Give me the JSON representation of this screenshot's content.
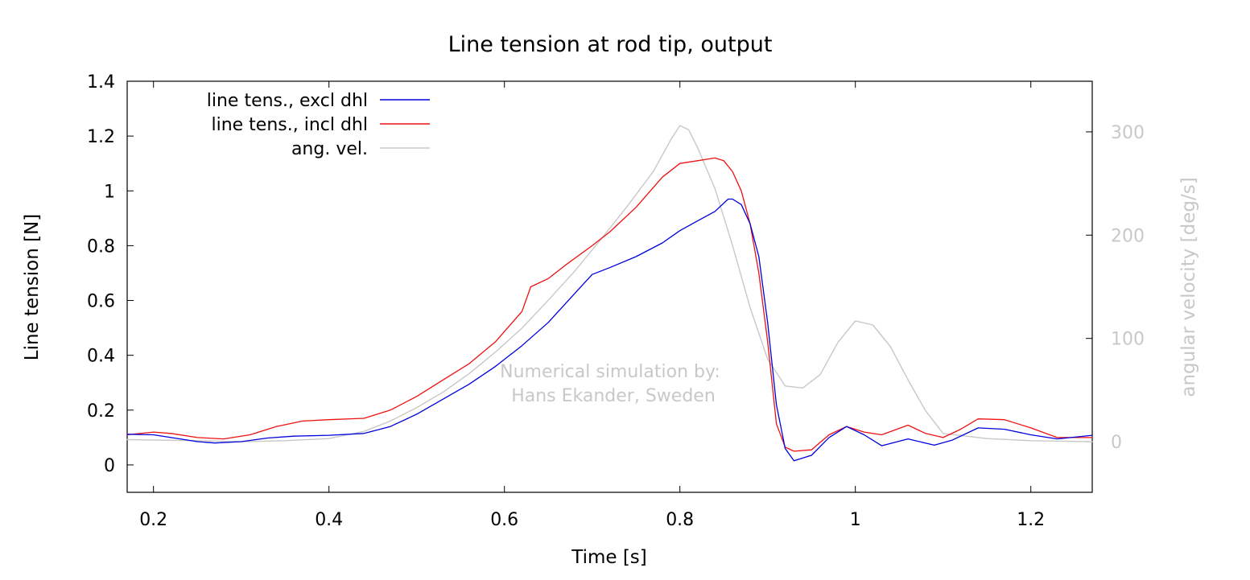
{
  "chart_data": {
    "type": "line",
    "title": "Line tension at rod tip, output",
    "xlabel": "Time [s]",
    "ylabel": "Line tension [N]",
    "y2label": "angular velocity [deg/s]",
    "xlim": [
      0.17,
      1.27
    ],
    "ylim": [
      -0.1,
      1.4
    ],
    "y2lim": [
      -49,
      349
    ],
    "xticks": [
      0.2,
      0.4,
      0.6,
      0.8,
      1,
      1.2
    ],
    "yticks": [
      0,
      0.2,
      0.4,
      0.6,
      0.8,
      1,
      1.2,
      1.4
    ],
    "y2ticks": [
      0,
      100,
      200,
      300
    ],
    "xtick_labels": [
      "0.2",
      "0.4",
      "0.6",
      "0.8",
      "1",
      "1.2"
    ],
    "ytick_labels": [
      "0",
      "0.2",
      "0.4",
      "0.6",
      "0.8",
      "1",
      "1.2",
      "1.4"
    ],
    "y2tick_labels": [
      "0",
      "100",
      "200",
      "300"
    ],
    "grid": false,
    "legend_position": "top-left",
    "annotation": [
      "Numerical simulation by:",
      "Hans Ekander, Sweden"
    ],
    "series": [
      {
        "name": "line tens., excl dhl",
        "axis": "y",
        "color": "#0000dd",
        "points": [
          [
            0.17,
            0.112
          ],
          [
            0.2,
            0.11
          ],
          [
            0.22,
            0.1
          ],
          [
            0.25,
            0.085
          ],
          [
            0.27,
            0.08
          ],
          [
            0.3,
            0.085
          ],
          [
            0.33,
            0.098
          ],
          [
            0.36,
            0.105
          ],
          [
            0.4,
            0.108
          ],
          [
            0.44,
            0.115
          ],
          [
            0.47,
            0.14
          ],
          [
            0.5,
            0.185
          ],
          [
            0.53,
            0.24
          ],
          [
            0.56,
            0.295
          ],
          [
            0.59,
            0.36
          ],
          [
            0.62,
            0.435
          ],
          [
            0.65,
            0.52
          ],
          [
            0.67,
            0.59
          ],
          [
            0.69,
            0.66
          ],
          [
            0.7,
            0.695
          ],
          [
            0.72,
            0.72
          ],
          [
            0.75,
            0.76
          ],
          [
            0.78,
            0.81
          ],
          [
            0.8,
            0.855
          ],
          [
            0.82,
            0.89
          ],
          [
            0.84,
            0.925
          ],
          [
            0.855,
            0.97
          ],
          [
            0.86,
            0.97
          ],
          [
            0.87,
            0.95
          ],
          [
            0.88,
            0.88
          ],
          [
            0.89,
            0.76
          ],
          [
            0.9,
            0.52
          ],
          [
            0.91,
            0.22
          ],
          [
            0.92,
            0.06
          ],
          [
            0.93,
            0.015
          ],
          [
            0.95,
            0.035
          ],
          [
            0.97,
            0.1
          ],
          [
            0.99,
            0.14
          ],
          [
            1.01,
            0.11
          ],
          [
            1.03,
            0.07
          ],
          [
            1.06,
            0.095
          ],
          [
            1.09,
            0.072
          ],
          [
            1.11,
            0.09
          ],
          [
            1.14,
            0.135
          ],
          [
            1.17,
            0.13
          ],
          [
            1.2,
            0.11
          ],
          [
            1.23,
            0.095
          ],
          [
            1.27,
            0.108
          ]
        ]
      },
      {
        "name": "line tens., incl dhl",
        "axis": "y",
        "color": "#ee1111",
        "points": [
          [
            0.17,
            0.11
          ],
          [
            0.2,
            0.12
          ],
          [
            0.22,
            0.115
          ],
          [
            0.25,
            0.1
          ],
          [
            0.28,
            0.095
          ],
          [
            0.31,
            0.11
          ],
          [
            0.34,
            0.14
          ],
          [
            0.37,
            0.16
          ],
          [
            0.4,
            0.165
          ],
          [
            0.44,
            0.17
          ],
          [
            0.47,
            0.2
          ],
          [
            0.5,
            0.25
          ],
          [
            0.53,
            0.31
          ],
          [
            0.56,
            0.37
          ],
          [
            0.59,
            0.45
          ],
          [
            0.62,
            0.56
          ],
          [
            0.63,
            0.65
          ],
          [
            0.65,
            0.68
          ],
          [
            0.67,
            0.73
          ],
          [
            0.7,
            0.8
          ],
          [
            0.72,
            0.85
          ],
          [
            0.75,
            0.94
          ],
          [
            0.78,
            1.05
          ],
          [
            0.8,
            1.1
          ],
          [
            0.82,
            1.11
          ],
          [
            0.84,
            1.12
          ],
          [
            0.85,
            1.11
          ],
          [
            0.86,
            1.07
          ],
          [
            0.87,
            1.0
          ],
          [
            0.88,
            0.88
          ],
          [
            0.89,
            0.7
          ],
          [
            0.9,
            0.45
          ],
          [
            0.91,
            0.15
          ],
          [
            0.92,
            0.065
          ],
          [
            0.93,
            0.05
          ],
          [
            0.95,
            0.055
          ],
          [
            0.97,
            0.11
          ],
          [
            0.99,
            0.14
          ],
          [
            1.01,
            0.12
          ],
          [
            1.03,
            0.11
          ],
          [
            1.06,
            0.145
          ],
          [
            1.08,
            0.115
          ],
          [
            1.1,
            0.1
          ],
          [
            1.12,
            0.13
          ],
          [
            1.14,
            0.168
          ],
          [
            1.17,
            0.165
          ],
          [
            1.2,
            0.135
          ],
          [
            1.23,
            0.1
          ],
          [
            1.27,
            0.1
          ]
        ]
      },
      {
        "name": "ang. vel.",
        "axis": "y2",
        "color": "#c8c8c8",
        "points": [
          [
            0.17,
            2
          ],
          [
            0.25,
            1
          ],
          [
            0.3,
            0
          ],
          [
            0.35,
            1
          ],
          [
            0.4,
            3
          ],
          [
            0.44,
            10
          ],
          [
            0.47,
            20
          ],
          [
            0.5,
            33
          ],
          [
            0.53,
            48
          ],
          [
            0.56,
            66
          ],
          [
            0.59,
            87
          ],
          [
            0.62,
            110
          ],
          [
            0.65,
            137
          ],
          [
            0.68,
            165
          ],
          [
            0.71,
            196
          ],
          [
            0.74,
            228
          ],
          [
            0.77,
            262
          ],
          [
            0.79,
            293
          ],
          [
            0.8,
            306
          ],
          [
            0.81,
            302
          ],
          [
            0.82,
            285
          ],
          [
            0.84,
            245
          ],
          [
            0.86,
            190
          ],
          [
            0.88,
            130
          ],
          [
            0.9,
            80
          ],
          [
            0.92,
            54
          ],
          [
            0.94,
            52
          ],
          [
            0.96,
            65
          ],
          [
            0.98,
            96
          ],
          [
            1.0,
            117
          ],
          [
            1.02,
            113
          ],
          [
            1.04,
            92
          ],
          [
            1.06,
            60
          ],
          [
            1.08,
            30
          ],
          [
            1.1,
            8
          ],
          [
            1.15,
            3
          ],
          [
            1.2,
            1
          ],
          [
            1.27,
            0
          ]
        ]
      }
    ]
  }
}
